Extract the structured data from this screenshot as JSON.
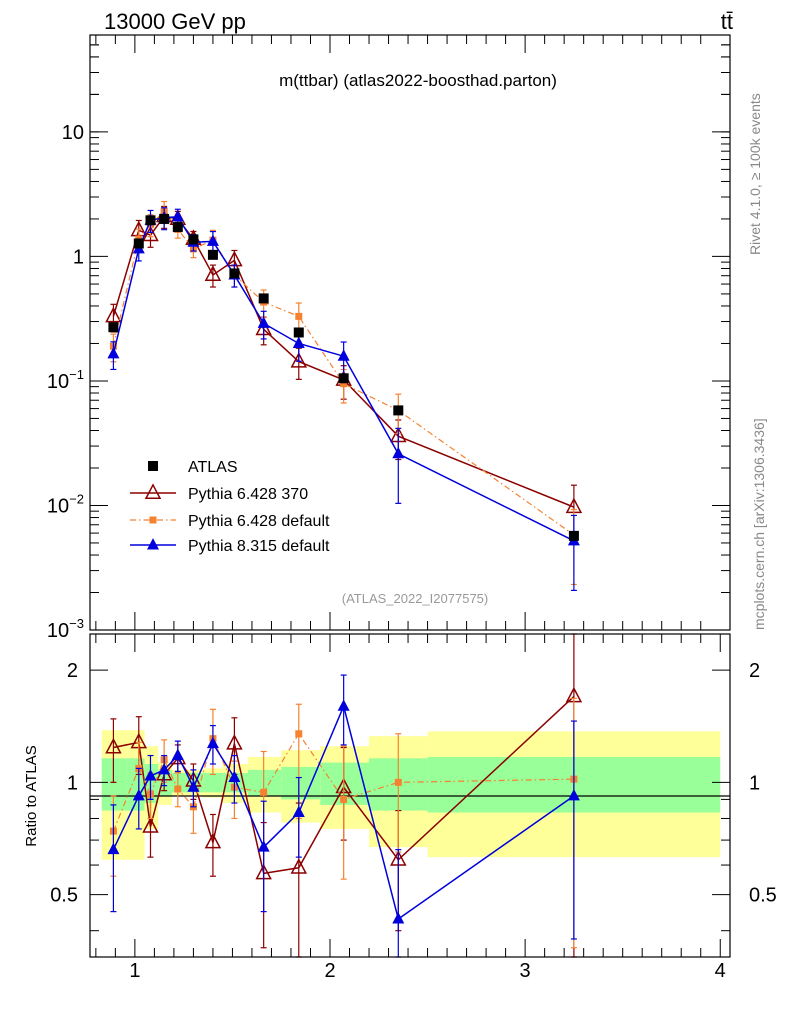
{
  "header": {
    "left": "13000 GeV pp",
    "right": "tt̄"
  },
  "side_labels": {
    "rivet": "Rivet 4.1.0, ≥ 100k events",
    "mcplots": "mcplots.cern.ch [arXiv:1306.3436]"
  },
  "colors": {
    "atlas": "#000000",
    "p6_370": "#8b0000",
    "p6_default": "#f58231",
    "p8": "#0000dd",
    "band_inner": "#99ff99",
    "band_outer": "#ffff99"
  },
  "chart_data": [
    {
      "type": "scatter",
      "title": "m(ttbar) (atlas2022-boosthad.parton)",
      "watermark": "(ATLAS_2022_I2077575)",
      "yscale": "log",
      "xlim": [
        0.77,
        4.05
      ],
      "ylim": [
        0.001,
        60
      ],
      "yticks": [
        {
          "v": 10,
          "base": "10",
          "exp": ""
        },
        {
          "v": 1,
          "base": "1",
          "exp": ""
        },
        {
          "v": 0.1,
          "base": "10",
          "exp": "−1"
        },
        {
          "v": 0.01,
          "base": "10",
          "exp": "−2"
        },
        {
          "v": 0.001,
          "base": "10",
          "exp": "−3"
        }
      ],
      "legend": [
        "ATLAS",
        "Pythia 6.428 370",
        "Pythia 6.428 default",
        "Pythia 8.315 default"
      ],
      "series": [
        {
          "name": "ATLAS",
          "marker": "square",
          "x": [
            0.89,
            1.02,
            1.08,
            1.15,
            1.22,
            1.3,
            1.4,
            1.51,
            1.66,
            1.84,
            2.07,
            2.35,
            3.25
          ],
          "y": [
            0.27,
            1.27,
            1.95,
            2.0,
            1.72,
            1.37,
            1.03,
            0.73,
            0.46,
            0.245,
            0.105,
            0.058,
            0.0057
          ]
        },
        {
          "name": "Pythia 6.428 370",
          "marker": "triangle-open",
          "x": [
            0.89,
            1.02,
            1.08,
            1.15,
            1.22,
            1.3,
            1.4,
            1.51,
            1.66,
            1.84,
            2.07,
            2.35,
            3.25
          ],
          "y": [
            0.33,
            1.62,
            1.48,
            2.1,
            2.0,
            1.38,
            0.71,
            0.93,
            0.26,
            0.143,
            0.102,
            0.036,
            0.0097
          ],
          "yerr": [
            0.25,
            0.2,
            0.2,
            0.2,
            0.15,
            0.15,
            0.2,
            0.2,
            0.25,
            0.28,
            0.3,
            0.35,
            0.5
          ]
        },
        {
          "name": "Pythia 6.428 default",
          "marker": "square-small",
          "x": [
            0.89,
            1.02,
            1.08,
            1.15,
            1.22,
            1.3,
            1.4,
            1.51,
            1.66,
            1.84,
            2.07,
            2.35,
            3.25
          ],
          "y": [
            0.19,
            1.38,
            1.8,
            2.3,
            1.65,
            1.15,
            1.35,
            0.71,
            0.43,
            0.33,
            0.095,
            0.058,
            0.0058
          ],
          "yerr": [
            0.25,
            0.2,
            0.2,
            0.2,
            0.15,
            0.15,
            0.2,
            0.2,
            0.25,
            0.28,
            0.3,
            0.35,
            0.6
          ]
        },
        {
          "name": "Pythia 8.315 default",
          "marker": "triangle",
          "x": [
            0.89,
            1.02,
            1.08,
            1.15,
            1.22,
            1.3,
            1.4,
            1.51,
            1.66,
            1.84,
            2.07,
            2.35,
            3.25
          ],
          "y": [
            0.165,
            1.15,
            1.95,
            2.05,
            2.08,
            1.3,
            1.32,
            0.71,
            0.29,
            0.2,
            0.158,
            0.026,
            0.0052
          ],
          "yerr": [
            0.25,
            0.2,
            0.2,
            0.2,
            0.15,
            0.15,
            0.2,
            0.2,
            0.25,
            0.28,
            0.3,
            0.6,
            0.6
          ]
        }
      ]
    },
    {
      "type": "scatter",
      "title": "",
      "ylabel": "Ratio to ATLAS",
      "yscale": "log",
      "xlim": [
        0.77,
        4.05
      ],
      "ylim": [
        0.34,
        2.5
      ],
      "xticks": [
        "1",
        "2",
        "3",
        "4"
      ],
      "yticks": [
        "0.5",
        "1",
        "2"
      ],
      "bands": {
        "edges": [
          0.83,
          0.96,
          1.05,
          1.12,
          1.19,
          1.26,
          1.35,
          1.45,
          1.58,
          1.75,
          1.95,
          2.2,
          2.5,
          4.0
        ],
        "inner": [
          0.16,
          0.16,
          0.12,
          0.08,
          0.06,
          0.06,
          0.06,
          0.06,
          0.08,
          0.1,
          0.13,
          0.16,
          0.17
        ],
        "outer": [
          0.38,
          0.38,
          0.25,
          0.13,
          0.08,
          0.08,
          0.09,
          0.12,
          0.17,
          0.22,
          0.25,
          0.33,
          0.37
        ]
      },
      "series": [
        {
          "name": "Pythia 6.428 370",
          "x": [
            0.89,
            1.02,
            1.08,
            1.15,
            1.22,
            1.3,
            1.4,
            1.51,
            1.66,
            1.84,
            2.07,
            2.35,
            3.25
          ],
          "y": [
            1.24,
            1.28,
            0.76,
            1.05,
            1.16,
            1.01,
            0.69,
            1.27,
            0.57,
            0.59,
            0.97,
            0.62,
            1.7
          ],
          "lo": [
            1.0,
            1.05,
            0.63,
            0.95,
            1.06,
            0.9,
            0.56,
            1.05,
            0.36,
            0.3,
            0.7,
            0.4,
            0.34
          ],
          "hi": [
            1.48,
            1.5,
            0.9,
            1.15,
            1.26,
            1.12,
            0.82,
            1.49,
            0.78,
            0.88,
            1.24,
            0.84,
            3.06
          ]
        },
        {
          "name": "Pythia 6.428 default",
          "x": [
            0.89,
            1.02,
            1.08,
            1.15,
            1.22,
            1.3,
            1.4,
            1.51,
            1.66,
            1.84,
            2.07,
            2.35,
            3.25
          ],
          "y": [
            0.74,
            1.09,
            0.93,
            1.15,
            0.96,
            0.86,
            1.31,
            0.97,
            0.94,
            1.35,
            0.9,
            1.0,
            1.02
          ],
          "lo": [
            0.56,
            0.9,
            0.8,
            1.0,
            0.86,
            0.73,
            1.05,
            0.8,
            0.67,
            0.8,
            0.55,
            0.65,
            0.36
          ],
          "hi": [
            0.92,
            1.28,
            1.06,
            1.3,
            1.06,
            0.99,
            1.57,
            1.14,
            1.21,
            1.62,
            1.25,
            1.35,
            1.68
          ]
        },
        {
          "name": "Pythia 8.315 default",
          "x": [
            0.89,
            1.02,
            1.08,
            1.15,
            1.22,
            1.3,
            1.4,
            1.51,
            1.66,
            1.84,
            2.07,
            2.35,
            3.25
          ],
          "y": [
            0.66,
            0.92,
            1.04,
            1.08,
            1.18,
            0.97,
            1.27,
            1.03,
            0.67,
            0.83,
            1.6,
            0.43,
            0.92
          ],
          "lo": [
            0.45,
            0.75,
            0.9,
            0.98,
            1.07,
            0.86,
            1.12,
            0.88,
            0.45,
            0.63,
            1.26,
            0.2,
            0.38
          ],
          "hi": [
            0.87,
            1.09,
            1.18,
            1.18,
            1.29,
            1.08,
            1.42,
            1.18,
            0.89,
            1.03,
            1.94,
            0.66,
            1.46
          ]
        }
      ]
    }
  ]
}
